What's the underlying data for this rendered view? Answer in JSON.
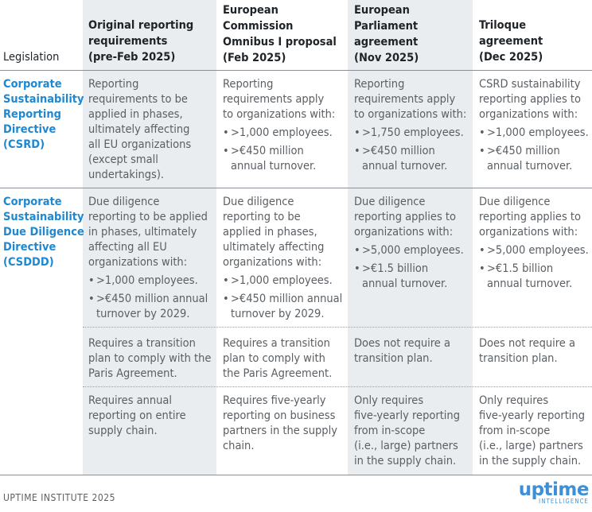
{
  "header": {
    "legislation": "Legislation",
    "col1": [
      "Original reporting",
      "requirements",
      "(pre-Feb 2025)"
    ],
    "col2": [
      "European",
      "Commission",
      "Omnibus I proposal",
      "(Feb 2025)"
    ],
    "col3": [
      "European",
      "Parliament",
      "agreement",
      "(Nov 2025)"
    ],
    "col4": [
      "Triloque",
      "agreement",
      "(Dec 2025)"
    ]
  },
  "rows": {
    "csrd": {
      "label": [
        "Corporate",
        "Sustainability",
        "Reporting",
        "Directive",
        "(CSRD)"
      ],
      "c1": [
        "Reporting",
        "requirements to be",
        "applied in phases,",
        "ultimately affecting",
        "all EU organizations",
        "(except small",
        "undertakings)."
      ],
      "c2_text": [
        "Reporting",
        "requirements apply",
        "to organizations with:"
      ],
      "c2_b1": [
        ">1,000 employees."
      ],
      "c2_b2": [
        ">€450 million",
        "annual turnover."
      ],
      "c3_text": [
        "Reporting",
        "requirements apply",
        "to organizations with:"
      ],
      "c3_b1": [
        ">1,750 employees."
      ],
      "c3_b2": [
        ">€450 million",
        "annual turnover."
      ],
      "c4_text": [
        "CSRD sustainability",
        "reporting applies to",
        "organizations with:"
      ],
      "c4_b1": [
        ">1,000 employees."
      ],
      "c4_b2": [
        ">€450 million",
        "annual turnover."
      ]
    },
    "csddd": {
      "label": [
        "Corporate",
        "Sustainability",
        "Due Diligence",
        "Directive",
        "(CSDDD)"
      ],
      "c1_text": [
        "Due diligence",
        "reporting to be applied",
        "in phases, ultimately",
        "affecting all EU",
        "organizations with:"
      ],
      "c1_b1": [
        ">1,000 employees."
      ],
      "c1_b2": [
        ">€450 million annual",
        "turnover by 2029."
      ],
      "c2_text": [
        "Due diligence",
        "reporting to be",
        "applied in phases,",
        "ultimately affecting",
        "organizations with:"
      ],
      "c2_b1": [
        ">1,000 employees."
      ],
      "c2_b2": [
        ">€450 million annual",
        "turnover by 2029."
      ],
      "c3_text": [
        "Due diligence",
        "reporting applies to",
        "organizations with:"
      ],
      "c3_b1": [
        ">5,000 employees."
      ],
      "c3_b2": [
        ">€1.5 billion",
        "annual turnover."
      ],
      "c4_text": [
        "Due diligence",
        "reporting applies to",
        "organizations with:"
      ],
      "c4_b1": [
        ">5,000 employees."
      ],
      "c4_b2": [
        ">€1.5 billion",
        "annual turnover."
      ]
    },
    "transition": {
      "c1": [
        "Requires a transition",
        "plan to comply with the",
        "Paris Agreement."
      ],
      "c2": [
        "Requires a transition",
        "plan to comply with",
        "the Paris Agreement."
      ],
      "c3": [
        "Does not require a",
        "transition plan."
      ],
      "c4": [
        "Does not require a",
        "transition plan."
      ]
    },
    "supply": {
      "c1": [
        "Requires annual",
        "reporting on entire",
        "supply chain."
      ],
      "c2": [
        "Requires five-yearly",
        "reporting on business",
        "partners in the supply",
        "chain."
      ],
      "c3": [
        "Only requires",
        "five-yearly reporting",
        "from in-scope",
        "(i.e., large) partners",
        "in the supply chain."
      ],
      "c4": [
        "Only requires",
        "five-yearly reporting",
        "from in-scope",
        "(i.e., large) partners",
        "in the supply chain."
      ]
    }
  },
  "footer": {
    "source": "UPTIME INSTITUTE 2025",
    "logo_word": "uptime",
    "logo_sub": "INTELLIGENCE"
  }
}
